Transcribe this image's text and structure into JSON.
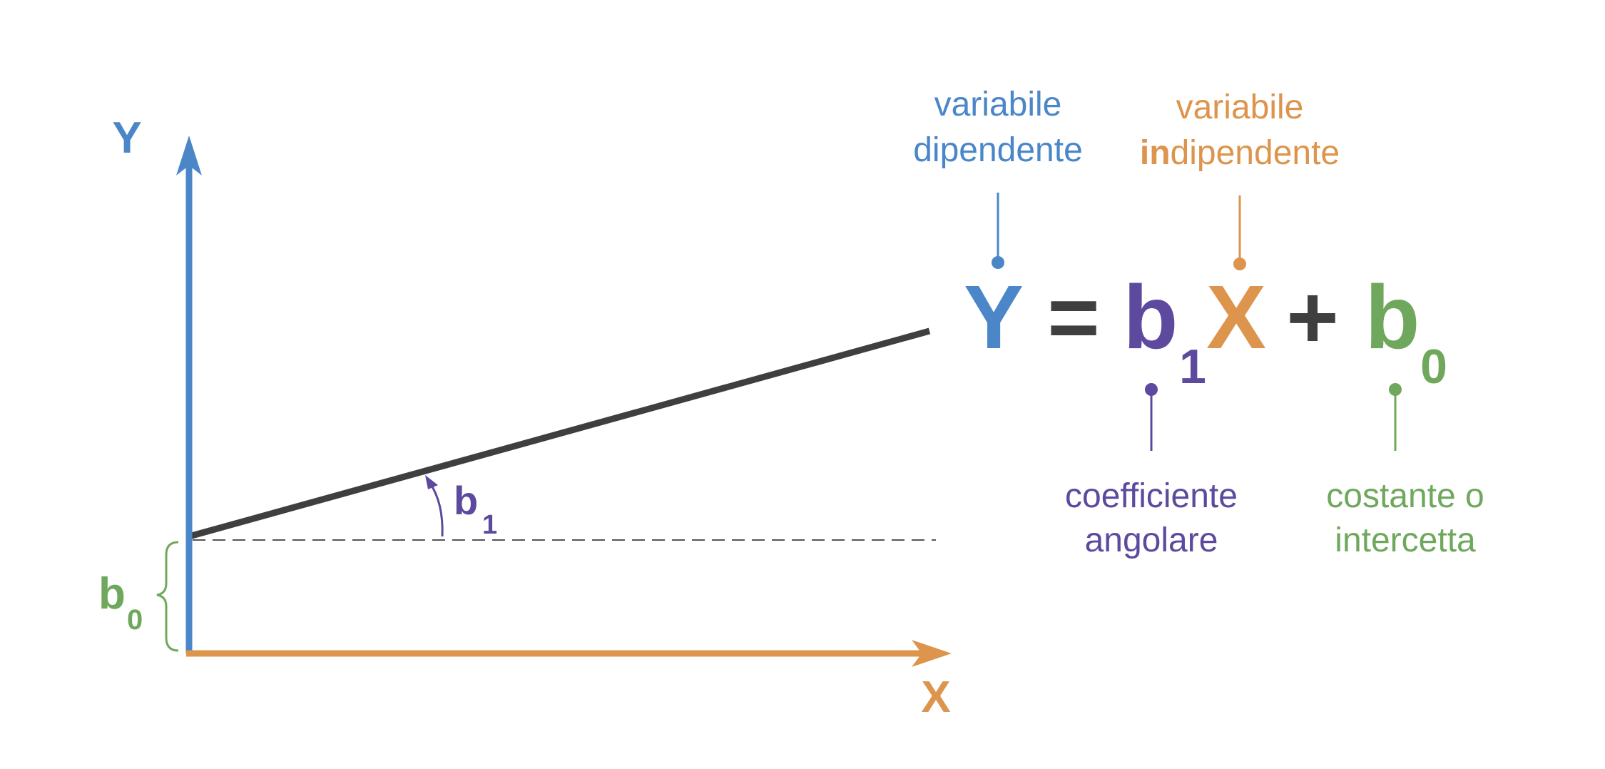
{
  "colors": {
    "y_axis": "#4a86c8",
    "x_axis": "#dd944c",
    "slope": "#5d4a9e",
    "intercept": "#6fa85c",
    "line": "#3f3f3f",
    "operator": "#3f3f3f",
    "dashed": "#555555"
  },
  "graph": {
    "y_axis_label": "Y",
    "x_axis_label": "X",
    "slope_label": "b",
    "slope_subscript": "1",
    "intercept_label": "b",
    "intercept_subscript": "0"
  },
  "equation": {
    "y": "Y",
    "equals": "=",
    "b": "b",
    "b_subscript": "1",
    "x": "X",
    "plus": "+",
    "b0": "b",
    "b0_subscript": "0"
  },
  "annotations": {
    "dependent": {
      "line1": "variabile",
      "line2": "dipendente"
    },
    "independent": {
      "line1": "variabile",
      "line2_bold_prefix": "in",
      "line2_rest": "dipendente"
    },
    "slope": {
      "line1": "coefficiente",
      "line2": "angolare"
    },
    "intercept": {
      "line1": "costante o",
      "line2": "intercetta"
    }
  }
}
